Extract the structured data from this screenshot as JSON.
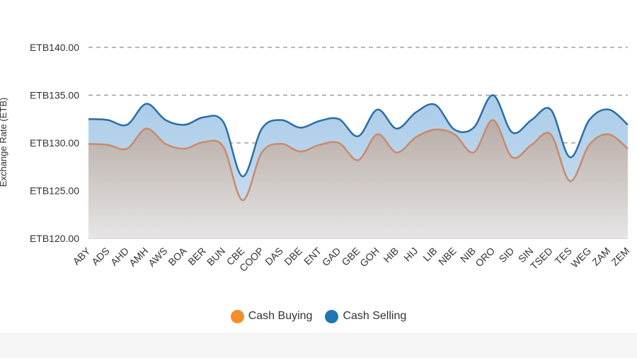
{
  "chart_data": {
    "type": "area",
    "ylabel": "Exchange Rate (ETB)",
    "xlabel": "",
    "ylim": [
      120,
      140
    ],
    "yticks": [
      120,
      125,
      130,
      135,
      140
    ],
    "ytick_labels": [
      "ETB120.00",
      "ETB125.00",
      "ETB130.00",
      "ETB135.00",
      "ETB140.00"
    ],
    "grid": true,
    "legend_position": "bottom",
    "categories": [
      "ABY",
      "ADS",
      "AHD",
      "AMH",
      "AWS",
      "BOA",
      "BER",
      "BUN",
      "CBE",
      "COOP",
      "DAS",
      "DBE",
      "ENT",
      "GAD",
      "GBE",
      "GOH",
      "HIB",
      "HIJ",
      "LIB",
      "NBE",
      "NIB",
      "ORO",
      "SID",
      "SIN",
      "TSED",
      "TES",
      "WEG",
      "ZAM",
      "ZEM"
    ],
    "series": [
      {
        "name": "Cash Buying",
        "color": "#f28e2b",
        "line_color": "#c98a6a",
        "values": [
          129.9,
          129.8,
          129.4,
          131.5,
          129.9,
          129.4,
          130.1,
          129.6,
          124.0,
          129.0,
          129.9,
          129.1,
          129.8,
          130.0,
          128.2,
          130.9,
          129.0,
          130.6,
          131.4,
          130.9,
          129.0,
          132.4,
          128.5,
          129.8,
          130.9,
          126.0,
          129.8,
          130.9,
          129.4
        ]
      },
      {
        "name": "Cash Selling",
        "color": "#1f77b4",
        "line_color": "#2b6ea5",
        "values": [
          132.5,
          132.4,
          131.9,
          134.1,
          132.4,
          131.9,
          132.7,
          132.2,
          126.5,
          131.5,
          132.4,
          131.6,
          132.3,
          132.5,
          130.7,
          133.5,
          131.5,
          133.2,
          134.0,
          131.4,
          131.6,
          135.0,
          131.1,
          132.4,
          133.5,
          128.5,
          132.4,
          133.5,
          131.9
        ]
      }
    ]
  }
}
